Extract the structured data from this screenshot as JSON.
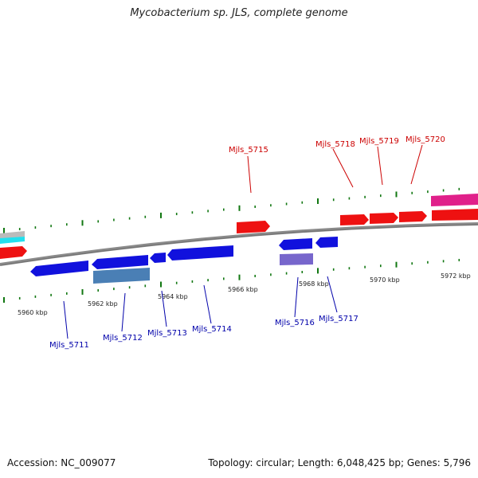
{
  "title": "Mycobacterium sp. JLS, complete genome",
  "footer": {
    "accession": "Accession: NC_009077",
    "summary": "Topology: circular; Length: 6,048,425 bp; Genes: 5,796"
  },
  "colors": {
    "forward_gene": "#ee1111",
    "reverse_gene": "#1111dd",
    "backbone": "#888888",
    "tick": "#117711",
    "magenta_gene": "#e0208a",
    "steel_gene": "#4a7fb5",
    "violet_gene": "#7766cc",
    "cyan_gene": "#22e0ee",
    "label_forward": "#cc0000",
    "label_reverse": "#0000aa"
  },
  "scale_labels": [
    "5960 kbp",
    "5962 kbp",
    "5964 kbp",
    "5966 kbp",
    "5968 kbp",
    "5970 kbp",
    "5972 kbp"
  ],
  "gene_labels_forward": [
    "Mjls_5715",
    "Mjls_5718",
    "Mjls_5719",
    "Mjls_5720"
  ],
  "gene_labels_reverse": [
    "Mjls_5711",
    "Mjls_5712",
    "Mjls_5713",
    "Mjls_5714",
    "Mjls_5716",
    "Mjls_5717"
  ]
}
